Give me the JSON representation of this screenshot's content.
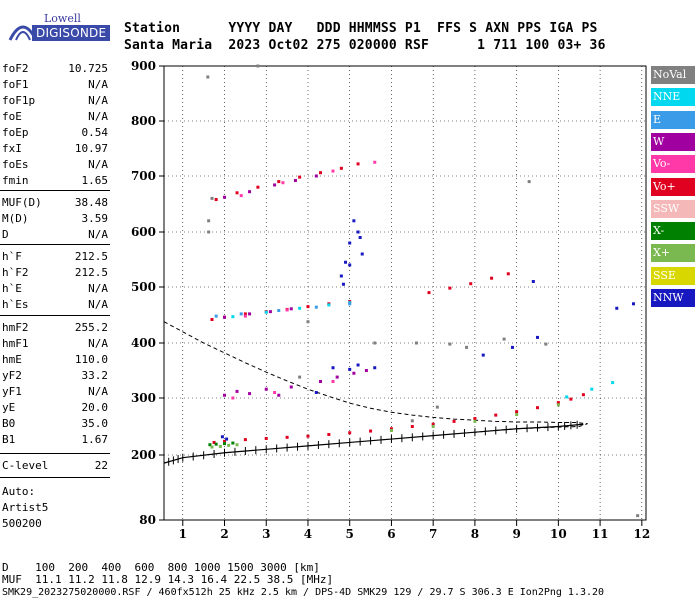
{
  "logo": {
    "brand_top": "Lowell",
    "brand_bottom": "DIGISONDE"
  },
  "header": {
    "row1": "Station      YYYY DAY   DDD HHMMSS P1  FFS S AXN PPS IGA PS",
    "row2": "Santa Maria  2023 Oct02 275 020000 RSF      1 711 100 03+ 36"
  },
  "params": [
    {
      "key": "foF2",
      "value": "10.725"
    },
    {
      "key": "foF1",
      "value": "N/A"
    },
    {
      "key": "foF1p",
      "value": "N/A"
    },
    {
      "key": "foE",
      "value": "N/A"
    },
    {
      "key": "foEp",
      "value": "0.54"
    },
    {
      "key": "fxI",
      "value": "10.97"
    },
    {
      "key": "foEs",
      "value": "N/A"
    },
    {
      "key": "fmin",
      "value": "1.65"
    },
    {
      "key": "MUF(D)",
      "value": "38.48"
    },
    {
      "key": "M(D)",
      "value": "3.59"
    },
    {
      "key": "D",
      "value": "N/A"
    },
    {
      "key": "h`F",
      "value": "212.5"
    },
    {
      "key": "h`F2",
      "value": "212.5"
    },
    {
      "key": "h`E",
      "value": "N/A"
    },
    {
      "key": "h`Es",
      "value": "N/A"
    },
    {
      "key": "hmF2",
      "value": "255.2"
    },
    {
      "key": "hmF1",
      "value": "N/A"
    },
    {
      "key": "hmE",
      "value": "110.0"
    },
    {
      "key": "yF2",
      "value": "33.2"
    },
    {
      "key": "yF1",
      "value": "N/A"
    },
    {
      "key": "yE",
      "value": "20.0"
    },
    {
      "key": "B0",
      "value": "35.0"
    },
    {
      "key": "B1",
      "value": "1.67"
    },
    {
      "key": "C-level",
      "value": "22"
    }
  ],
  "auto": {
    "line1": "Auto:",
    "line2": "Artist5",
    "line3": "500200"
  },
  "legend": [
    {
      "label": "NoVal",
      "color": "#808080"
    },
    {
      "label": "NNE",
      "color": "#00d8f0"
    },
    {
      "label": "E",
      "color": "#3a9be8"
    },
    {
      "label": "W",
      "color": "#a000a0"
    },
    {
      "label": "Vo-",
      "color": "#ff3aa8"
    },
    {
      "label": "Vo+",
      "color": "#e00020"
    },
    {
      "label": "SSW",
      "color": "#f5b8b8"
    },
    {
      "label": "X-",
      "color": "#008000"
    },
    {
      "label": "X+",
      "color": "#7ab850"
    },
    {
      "label": "SSE",
      "color": "#d8d800"
    },
    {
      "label": "NNW",
      "color": "#1818c0"
    }
  ],
  "footer": {
    "d_row": "D    100  200  400  600  800 1000 1500 3000 [km]",
    "muf_row": "MUF  11.1 11.2 11.8 12.9 14.3 16.4 22.5 38.5 [MHz]",
    "file_row": "SMK29_2023275020000.RSF / 460fx512h 25 kHz 2.5 km / DPS-4D SMK29 129 / 29.7 S 306.3 E Ion2Png 1.3.20"
  },
  "chart_data": {
    "type": "scatter",
    "x_ticks": [
      "1",
      "2",
      "3",
      "4",
      "5",
      "6",
      "7",
      "8",
      "9",
      "10",
      "11",
      "12"
    ],
    "y_ticks": [
      "80",
      "200",
      "300",
      "400",
      "500",
      "600",
      "700",
      "800",
      "900"
    ],
    "xlim": [
      0.55,
      12.1
    ],
    "ylim": [
      80,
      900
    ],
    "grid": true,
    "series": [
      {
        "name": "Vo+",
        "color": "#e00020",
        "points": [
          [
            1.75,
            222
          ],
          [
            2.0,
            224
          ],
          [
            2.5,
            227
          ],
          [
            3.0,
            229
          ],
          [
            3.5,
            231
          ],
          [
            4.0,
            233
          ],
          [
            4.5,
            236
          ],
          [
            5.0,
            239
          ],
          [
            5.5,
            242
          ],
          [
            6.0,
            246
          ],
          [
            6.5,
            250
          ],
          [
            7.0,
            254
          ],
          [
            7.5,
            259
          ],
          [
            8.0,
            264
          ],
          [
            8.5,
            270
          ],
          [
            9.0,
            276
          ],
          [
            9.5,
            283
          ],
          [
            10.0,
            292
          ],
          [
            10.3,
            298
          ],
          [
            10.6,
            306
          ],
          [
            1.7,
            442
          ],
          [
            2.0,
            446
          ],
          [
            2.5,
            452
          ],
          [
            3.0,
            456
          ],
          [
            3.5,
            460
          ],
          [
            4.0,
            465
          ],
          [
            4.5,
            470
          ],
          [
            5.0,
            474
          ],
          [
            1.8,
            658
          ],
          [
            2.3,
            670
          ],
          [
            2.8,
            680
          ],
          [
            3.3,
            690
          ],
          [
            3.8,
            698
          ],
          [
            4.3,
            706
          ],
          [
            4.8,
            714
          ],
          [
            5.2,
            722
          ],
          [
            6.9,
            490
          ],
          [
            7.4,
            498
          ],
          [
            7.9,
            506
          ],
          [
            8.4,
            516
          ],
          [
            8.8,
            524
          ]
        ]
      },
      {
        "name": "X-",
        "color": "#008000",
        "points": [
          [
            1.65,
            218
          ],
          [
            1.8,
            219
          ],
          [
            2.0,
            220
          ],
          [
            2.2,
            221
          ]
        ]
      },
      {
        "name": "X+",
        "color": "#7ab850",
        "points": [
          [
            1.7,
            214
          ],
          [
            1.9,
            215
          ],
          [
            2.1,
            217
          ],
          [
            2.3,
            218
          ],
          [
            6.0,
            243
          ],
          [
            7.0,
            250
          ],
          [
            8.0,
            259
          ],
          [
            9.0,
            271
          ],
          [
            10.0,
            288
          ]
        ]
      },
      {
        "name": "NNE",
        "color": "#00d8f0",
        "points": [
          [
            2.2,
            447
          ],
          [
            3.0,
            455
          ],
          [
            3.8,
            462
          ],
          [
            4.5,
            468
          ],
          [
            5.0,
            472
          ],
          [
            10.2,
            302
          ],
          [
            10.8,
            316
          ],
          [
            11.3,
            328
          ]
        ]
      },
      {
        "name": "E",
        "color": "#3a9be8",
        "points": [
          [
            1.8,
            448
          ],
          [
            2.4,
            452
          ],
          [
            3.3,
            458
          ],
          [
            4.2,
            464
          ],
          [
            5.0,
            470
          ]
        ]
      },
      {
        "name": "W",
        "color": "#a000a0",
        "points": [
          [
            2.0,
            305
          ],
          [
            2.3,
            312
          ],
          [
            2.6,
            308
          ],
          [
            3.0,
            316
          ],
          [
            3.3,
            305
          ],
          [
            3.6,
            320
          ],
          [
            4.3,
            330
          ],
          [
            4.7,
            338
          ],
          [
            5.1,
            345
          ],
          [
            5.4,
            350
          ],
          [
            2.0,
            446
          ],
          [
            2.6,
            452
          ],
          [
            3.1,
            456
          ],
          [
            3.6,
            461
          ],
          [
            2.0,
            662
          ],
          [
            2.6,
            672
          ],
          [
            3.2,
            684
          ],
          [
            3.7,
            692
          ],
          [
            4.2,
            700
          ]
        ]
      },
      {
        "name": "NNW",
        "color": "#1818c0",
        "points": [
          [
            1.95,
            232
          ],
          [
            2.05,
            228
          ],
          [
            4.8,
            520
          ],
          [
            5.0,
            580
          ],
          [
            5.2,
            600
          ],
          [
            5.3,
            560
          ],
          [
            4.9,
            545
          ],
          [
            5.1,
            620
          ],
          [
            5.0,
            540
          ],
          [
            4.85,
            505
          ],
          [
            5.25,
            590
          ],
          [
            5.0,
            352
          ],
          [
            5.2,
            360
          ],
          [
            8.2,
            378
          ],
          [
            8.9,
            392
          ],
          [
            9.5,
            410
          ],
          [
            11.4,
            462
          ],
          [
            11.8,
            470
          ],
          [
            9.4,
            510
          ],
          [
            4.2,
            310
          ],
          [
            4.6,
            355
          ],
          [
            5.6,
            355
          ]
        ]
      },
      {
        "name": "Vo-",
        "color": "#ff3aa8",
        "points": [
          [
            2.2,
            300
          ],
          [
            3.2,
            310
          ],
          [
            4.6,
            330
          ],
          [
            2.5,
            448
          ],
          [
            3.5,
            459
          ],
          [
            2.4,
            665
          ],
          [
            3.4,
            688
          ],
          [
            4.6,
            709
          ],
          [
            5.6,
            725
          ]
        ]
      },
      {
        "name": "NoVal",
        "color": "#808080",
        "points": [
          [
            1.62,
            620
          ],
          [
            1.62,
            600
          ],
          [
            1.7,
            660
          ],
          [
            1.6,
            880
          ],
          [
            2.8,
            900
          ],
          [
            4.0,
            438
          ],
          [
            6.6,
            400
          ],
          [
            7.4,
            398
          ],
          [
            7.8,
            392
          ],
          [
            5.6,
            400
          ],
          [
            8.7,
            407
          ],
          [
            9.7,
            398
          ],
          [
            6.5,
            260
          ],
          [
            7.1,
            284
          ],
          [
            3.8,
            338
          ],
          [
            9.3,
            690
          ],
          [
            11.9,
            88
          ]
        ]
      }
    ],
    "trace_virtual_height": [
      [
        0.55,
        185
      ],
      [
        1.0,
        195
      ],
      [
        2.0,
        204
      ],
      [
        3.0,
        210
      ],
      [
        4.0,
        216
      ],
      [
        5.0,
        222
      ],
      [
        6.0,
        228
      ],
      [
        7.0,
        234
      ],
      [
        8.0,
        240
      ],
      [
        9.0,
        246
      ],
      [
        10.0,
        250
      ],
      [
        10.6,
        254
      ]
    ],
    "trace_profile": [
      [
        0.55,
        438
      ],
      [
        1.0,
        420
      ],
      [
        1.5,
        400
      ],
      [
        2.0,
        382
      ],
      [
        2.5,
        364
      ],
      [
        3.0,
        347
      ],
      [
        3.5,
        331
      ],
      [
        4.0,
        316
      ],
      [
        4.5,
        303
      ],
      [
        5.0,
        291
      ],
      [
        5.5,
        282
      ],
      [
        6.0,
        275
      ],
      [
        6.5,
        270
      ],
      [
        7.0,
        266
      ],
      [
        7.5,
        263
      ],
      [
        8.0,
        261
      ],
      [
        8.5,
        259
      ],
      [
        9.0,
        258
      ],
      [
        9.5,
        258
      ],
      [
        10.0,
        257
      ],
      [
        10.4,
        257
      ],
      [
        10.7,
        255
      ],
      [
        10.5,
        250
      ],
      [
        10.0,
        249
      ],
      [
        9.0,
        246
      ],
      [
        8.0,
        240
      ]
    ]
  }
}
